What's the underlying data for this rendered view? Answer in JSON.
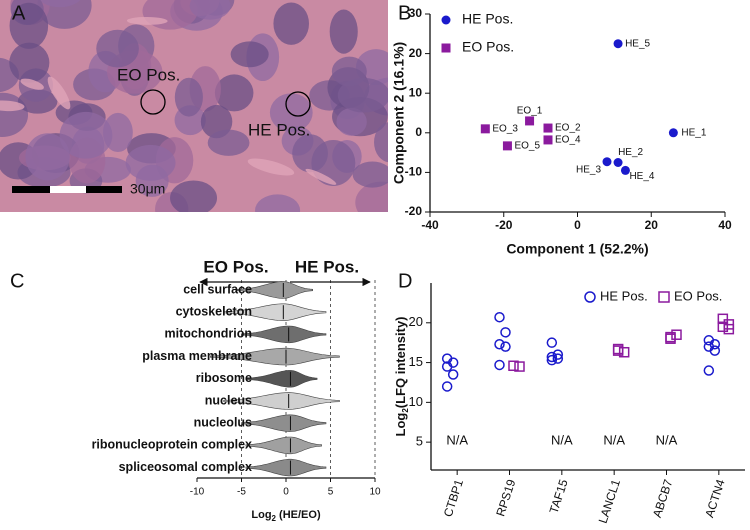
{
  "chart_data": [
    {
      "type": "image",
      "panel": "A",
      "labels": [
        "EO Pos.",
        "HE Pos."
      ],
      "scalebar": "30μm"
    },
    {
      "type": "scatter",
      "panel": "B",
      "xlabel": "Component 1 (52.2%)",
      "ylabel": "Component 2 (16.1%)",
      "xlim": [
        -40,
        40
      ],
      "xticks": [
        -40,
        -20,
        0,
        20,
        40
      ],
      "ylim": [
        -20,
        30
      ],
      "yticks": [
        -20,
        -10,
        0,
        10,
        20,
        30
      ],
      "legend": "upper left",
      "series": [
        {
          "name": "HE Pos.",
          "color": "#1a1acc",
          "marker": "circle",
          "labels": [
            "HE_1",
            "HE_2",
            "HE_3",
            "HE_4",
            "HE_5"
          ],
          "x": [
            26,
            11,
            8,
            13,
            11
          ],
          "values": [
            0,
            -7.5,
            -7.3,
            -9.5,
            22.5
          ]
        },
        {
          "name": "EO Pos.",
          "color": "#8b1a9e",
          "marker": "square",
          "labels": [
            "EO_1",
            "EO_2",
            "EO_3",
            "EO_4",
            "EO_5"
          ],
          "x": [
            -13,
            -8,
            -25,
            -8,
            -19
          ],
          "values": [
            3,
            1.2,
            1,
            -1.8,
            -3.3
          ]
        }
      ]
    },
    {
      "type": "violin",
      "panel": "C",
      "header": [
        {
          "text": "EO Pos.",
          "color": "#8b1a9e"
        },
        {
          "text": "HE Pos.",
          "color": "#1a1acc"
        }
      ],
      "xlabel": [
        "Log",
        "2",
        " (HE/EO)"
      ],
      "xlim": [
        -10,
        10
      ],
      "xticks": [
        -10,
        -5,
        0,
        5,
        10
      ],
      "reflines": [
        -5,
        0,
        5,
        10
      ],
      "categories": [
        "cell surface",
        "cytoskeleton",
        "mitochondrion",
        "plasma membrane",
        "ribosome",
        "nucleus",
        "nucleolus",
        "ribonucleoprotein complex",
        "spliceosomal complex"
      ],
      "colors": [
        "#9a9a9a",
        "#d4d4d4",
        "#6e6e6e",
        "#a8a8a8",
        "#555555",
        "#cfcfcf",
        "#8e8e8e",
        "#a0a0a0",
        "#8a8a8a"
      ],
      "min": [
        -5.5,
        -7,
        -5,
        -8.5,
        -4.5,
        -7,
        -5,
        -4.5,
        -4.5
      ],
      "max": [
        3,
        4.5,
        4.5,
        6,
        3.5,
        6,
        4.5,
        4,
        4.5
      ],
      "median": [
        -0.3,
        -0.3,
        0.3,
        0,
        0.5,
        0.3,
        0.5,
        0.5,
        0.5
      ]
    },
    {
      "type": "dot",
      "panel": "D",
      "ylabel": [
        "Log",
        "2",
        "(LFQ intensity)"
      ],
      "ylim": [
        1.5,
        25
      ],
      "yticks": [
        5,
        10,
        15,
        20
      ],
      "legend": "upper right",
      "categories": [
        "CTBP1",
        "RPS19",
        "TAF15",
        "LANCL1",
        "ABCB7",
        "ACTN4"
      ],
      "series": [
        {
          "name": "HE Pos.",
          "color": "#1a1acc",
          "marker": "circle",
          "values": [
            [
              15.5,
              15,
              14.5,
              13.5,
              12
            ],
            [
              20.7,
              18.8,
              17.3,
              17,
              14.7
            ],
            [
              17.5,
              16,
              15.7,
              15.5,
              15.3
            ],
            null,
            null,
            [
              17.8,
              17.3,
              17,
              16.5,
              14
            ]
          ]
        },
        {
          "name": "EO Pos.",
          "color": "#8b1a9e",
          "marker": "square",
          "values": [
            null,
            [
              14.6,
              14.5
            ],
            null,
            [
              16.5,
              16.3,
              16.7
            ],
            [
              18.2,
              18.5,
              18
            ],
            [
              20.5,
              19.8,
              19.5,
              19.2
            ]
          ]
        }
      ],
      "annotations": [
        {
          "text": "N/A",
          "x": "CTBP1",
          "series": "EO Pos."
        },
        {
          "text": "N/A",
          "x": "TAF15",
          "series": "EO Pos."
        },
        {
          "text": "N/A",
          "x": "LANCL1",
          "series": "HE Pos."
        },
        {
          "text": "N/A",
          "x": "ABCB7",
          "series": "HE Pos."
        }
      ]
    }
  ]
}
